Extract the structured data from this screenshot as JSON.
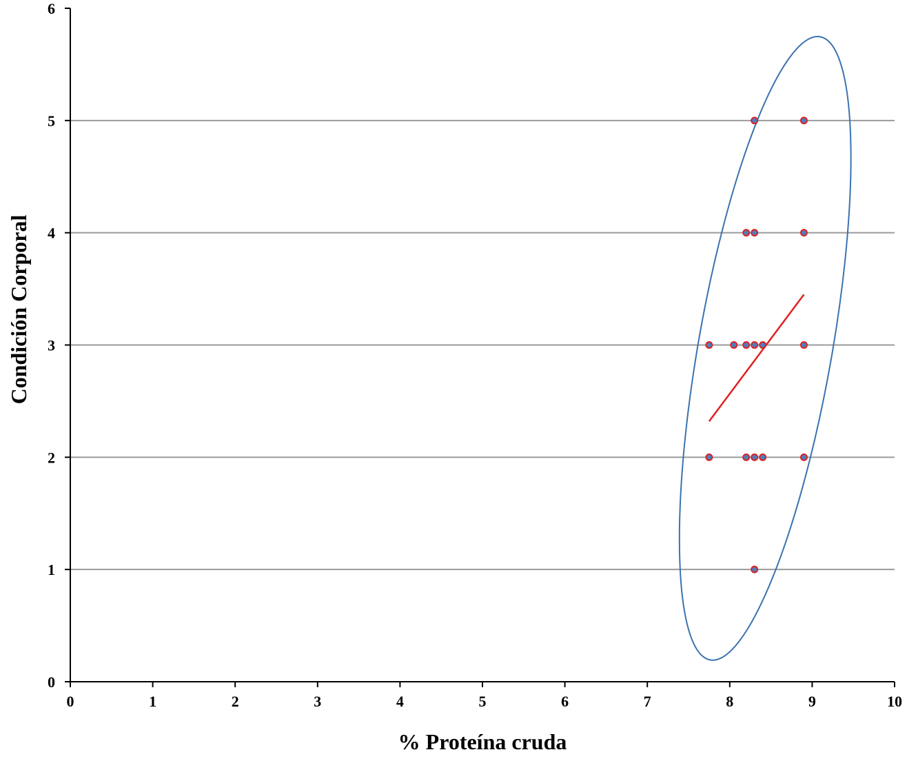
{
  "chart_data": {
    "type": "scatter",
    "xlabel": "% Proteína cruda",
    "ylabel": "Condición Corporal",
    "xlim": [
      0,
      10
    ],
    "ylim": [
      0,
      6
    ],
    "xticks": [
      "0",
      "1",
      "2",
      "3",
      "4",
      "5",
      "6",
      "7",
      "8",
      "9",
      "10"
    ],
    "yticks": [
      "0",
      "1",
      "2",
      "3",
      "4",
      "5",
      "6"
    ],
    "grid": "horizontal",
    "series": [
      {
        "points": [
          {
            "x": 8.3,
            "y": 5
          },
          {
            "x": 8.9,
            "y": 5
          },
          {
            "x": 8.2,
            "y": 4
          },
          {
            "x": 8.3,
            "y": 4
          },
          {
            "x": 8.9,
            "y": 4
          },
          {
            "x": 7.75,
            "y": 3
          },
          {
            "x": 8.05,
            "y": 3
          },
          {
            "x": 8.2,
            "y": 3
          },
          {
            "x": 8.3,
            "y": 3
          },
          {
            "x": 8.4,
            "y": 3
          },
          {
            "x": 8.9,
            "y": 3
          },
          {
            "x": 7.75,
            "y": 2
          },
          {
            "x": 8.2,
            "y": 2
          },
          {
            "x": 8.3,
            "y": 2
          },
          {
            "x": 8.4,
            "y": 2
          },
          {
            "x": 8.9,
            "y": 2
          },
          {
            "x": 8.3,
            "y": 1
          }
        ],
        "marker_fill": "#4a7fc1",
        "marker_stroke": "#e02020"
      }
    ],
    "trendline": {
      "x": [
        7.75,
        8.9
      ],
      "y": [
        2.32,
        3.45
      ],
      "color": "#e02020"
    },
    "ellipse": {
      "color": "#3b72b0"
    }
  }
}
